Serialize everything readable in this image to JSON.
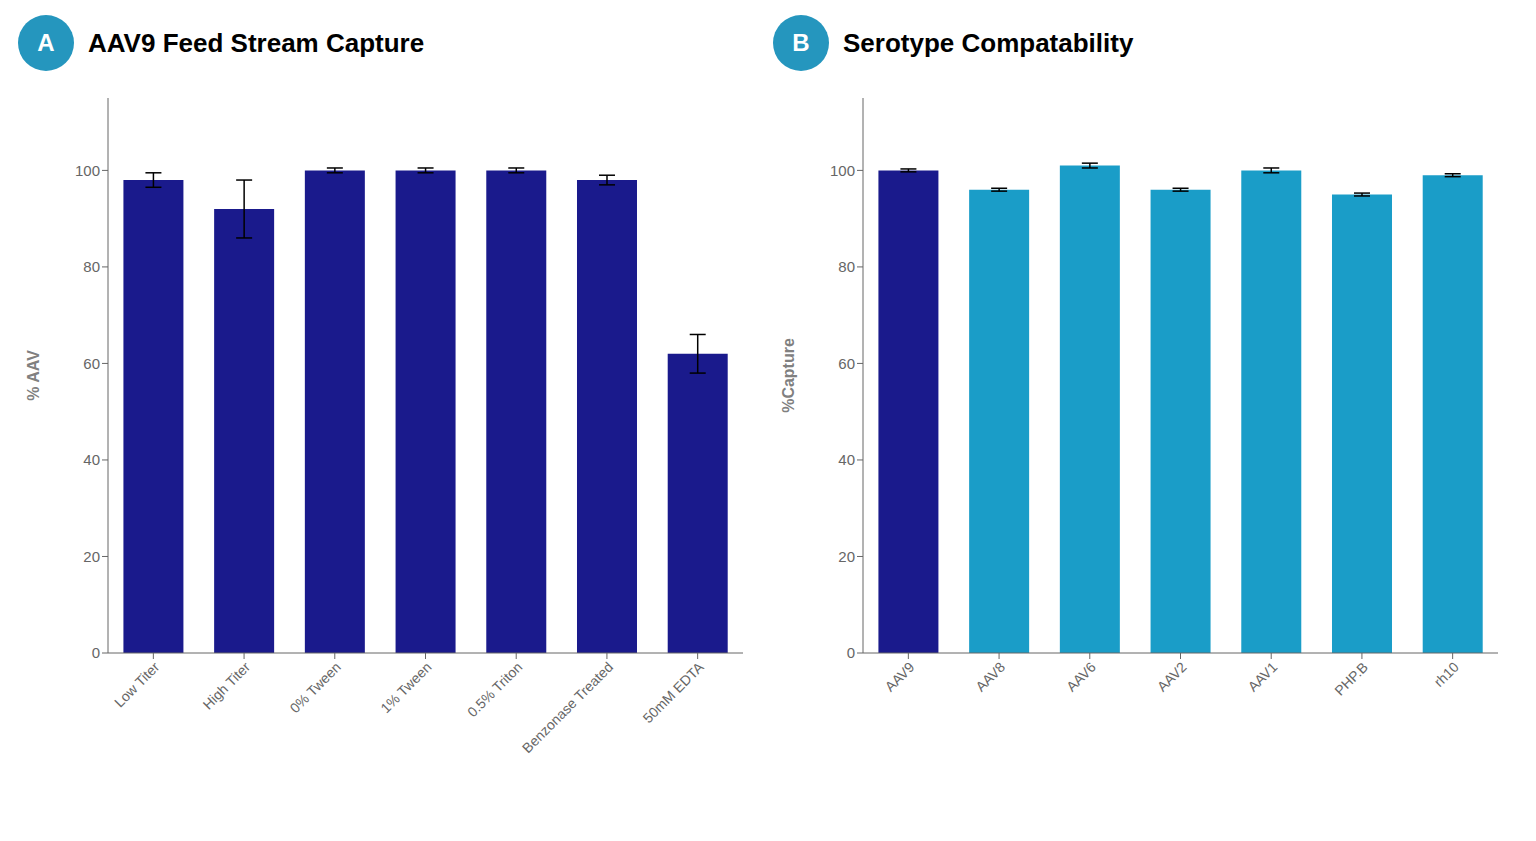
{
  "chart_data": [
    {
      "type": "bar",
      "title": "AAV9 Feed Stream Capture",
      "ylabel": "% AAV",
      "categories": [
        "Low Titer",
        "High Titer",
        "0% Tween",
        "1% Tween",
        "0.5% Triton",
        "Benzonase Treated",
        "50mM EDTA"
      ],
      "values": [
        98,
        92,
        100,
        100,
        100,
        98,
        62
      ],
      "errors": [
        1.5,
        6,
        0.5,
        0.5,
        0.5,
        1,
        4
      ],
      "color": "#1a1a8c",
      "ylim": [
        0,
        115
      ],
      "yticks": [
        0,
        20,
        40,
        60,
        80,
        100
      ],
      "grid": false,
      "annotations": [
        {
          "text": "A",
          "color": "#2596be"
        }
      ]
    },
    {
      "type": "bar",
      "title": "Serotype Compatability",
      "ylabel": "%Capture",
      "categories": [
        "AAV9",
        "AAV8",
        "AAV6",
        "AAV2",
        "AAV1",
        "PHP.B",
        "rh10"
      ],
      "values": [
        100,
        96,
        101,
        96,
        100,
        95,
        99
      ],
      "errors": [
        0.3,
        0.3,
        0.5,
        0.3,
        0.5,
        0.3,
        0.3
      ],
      "colors": [
        "#1a1a8c",
        "#1a9dc8",
        "#1a9dc8",
        "#1a9dc8",
        "#1a9dc8",
        "#1a9dc8",
        "#1a9dc8"
      ],
      "ylim": [
        0,
        115
      ],
      "yticks": [
        0,
        20,
        40,
        60,
        80,
        100
      ],
      "grid": false,
      "annotations": [
        {
          "text": "B",
          "color": "#2596be"
        }
      ]
    }
  ]
}
